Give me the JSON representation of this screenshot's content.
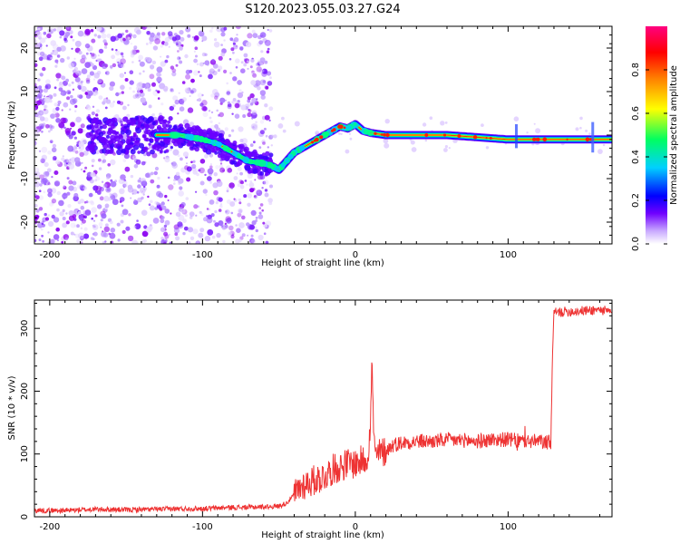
{
  "title": "S120.2023.055.03.27.G24",
  "chart_data": [
    {
      "type": "heatmap",
      "xlabel": "Height of straight line (km)",
      "ylabel": "Frequency (Hz)",
      "xlim": [
        -210,
        168
      ],
      "ylim": [
        -25,
        25
      ],
      "xticks": [
        -200,
        -100,
        0,
        100
      ],
      "yticks": [
        -20,
        -10,
        0,
        10,
        20
      ],
      "ytick_labels": [
        "-20",
        "-10",
        "0",
        "10",
        "20"
      ],
      "grid": false,
      "colorbar": {
        "label": "Normalized spectral amplitude",
        "range": [
          0.0,
          1.0
        ],
        "ticks": [
          0.0,
          0.2,
          0.4,
          0.6,
          0.8
        ],
        "tick_labels": [
          "0.0",
          "0.2",
          "0.4",
          "0.6",
          "0.8"
        ],
        "colormap": [
          "#ffffff",
          "#c8a8ff",
          "#7000ff",
          "#0000ff",
          "#00d0ff",
          "#00ff60",
          "#ffff00",
          "#ff8000",
          "#ff0000",
          "#ff0080"
        ]
      },
      "ridge": {
        "x": [
          -130,
          -115,
          -100,
          -90,
          -80,
          -70,
          -60,
          -55,
          -50,
          -45,
          -40,
          -35,
          -30,
          -25,
          -20,
          -15,
          -10,
          -5,
          0,
          5,
          10,
          20,
          40,
          60,
          80,
          100,
          120,
          140,
          160,
          168
        ],
        "y": [
          0,
          0,
          -1,
          -2,
          -4,
          -6,
          -6.5,
          -7,
          -8,
          -6,
          -4,
          -3,
          -2,
          -1,
          0,
          1,
          2,
          1.5,
          2.5,
          1,
          0.5,
          0,
          0,
          0,
          -0.5,
          -1,
          -1,
          -1,
          -1,
          -1
        ]
      }
    },
    {
      "type": "line",
      "xlabel": "Height of straight line (km)",
      "ylabel": "SNR (10 * v/v)",
      "xlim": [
        -210,
        168
      ],
      "ylim": [
        0,
        345
      ],
      "xticks": [
        -200,
        -100,
        0,
        100
      ],
      "yticks": [
        0,
        100,
        200,
        300
      ],
      "grid": false,
      "line_color": "#ee3333",
      "series": [
        {
          "x": [
            -210,
            -190,
            -170,
            -150,
            -130,
            -110,
            -100,
            -90,
            -80,
            -70,
            -60,
            -50,
            -45,
            -40,
            -35,
            -30,
            -25,
            -20,
            -15,
            -10,
            -5,
            0,
            5,
            8,
            10,
            11,
            12,
            13,
            15,
            20,
            25,
            30,
            40,
            50,
            60,
            70,
            80,
            90,
            100,
            110,
            120,
            128,
            129,
            130,
            140,
            150,
            160,
            168
          ],
          "values": [
            10,
            10,
            12,
            11,
            12,
            13,
            13,
            14,
            15,
            15,
            16,
            17,
            22,
            35,
            50,
            55,
            60,
            65,
            75,
            80,
            85,
            85,
            90,
            95,
            150,
            255,
            130,
            95,
            100,
            105,
            115,
            118,
            120,
            120,
            122,
            122,
            120,
            123,
            123,
            120,
            120,
            118,
            250,
            325,
            327,
            328,
            330,
            325
          ]
        }
      ]
    }
  ]
}
